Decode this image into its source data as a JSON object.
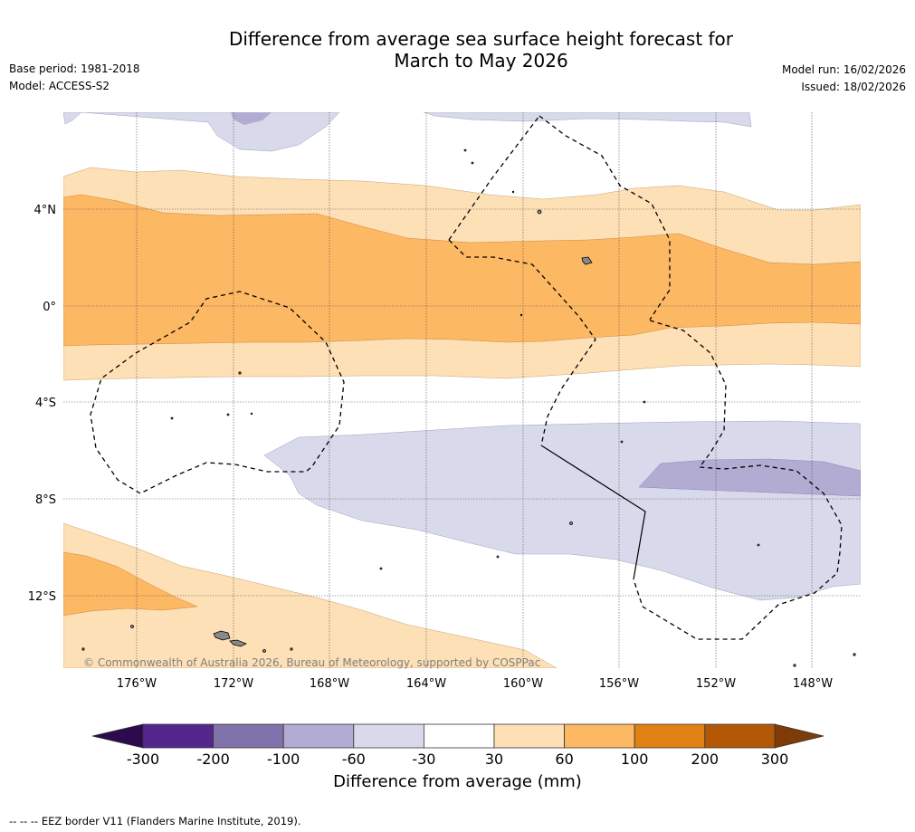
{
  "header": {
    "title_line1": "Difference from average sea surface height forecast for",
    "title_line2": "March to May 2026",
    "base_period": "Base period: 1981-2018",
    "model": "Model: ACCESS-S2",
    "model_run": "Model run: 16/02/2026",
    "issued": "Issued: 18/02/2026"
  },
  "map": {
    "lat_labels": [
      "4°N",
      "0°",
      "4°S",
      "8°S",
      "12°S"
    ],
    "lon_labels": [
      "176°W",
      "172°W",
      "168°W",
      "164°W",
      "160°W",
      "156°W",
      "152°W",
      "148°W"
    ],
    "copyright": "© Commonwealth of Australia 2026, Bureau of Meteorology, supported by COSPPac"
  },
  "colorbar": {
    "labels": [
      "-300",
      "-200",
      "-100",
      "-60",
      "-30",
      "30",
      "60",
      "100",
      "200",
      "300"
    ],
    "colors": [
      "#2d0a4e",
      "#54278f",
      "#8073ac",
      "#b2abd2",
      "#d8daeb",
      "#ffffff",
      "#fee0b6",
      "#fdb863",
      "#e08214",
      "#b35806",
      "#7f3b08"
    ],
    "units_label": "Difference from average (mm)"
  },
  "footnote": "--  --  -- EEZ border V11 (Flanders Marine Institute, 2019)."
}
